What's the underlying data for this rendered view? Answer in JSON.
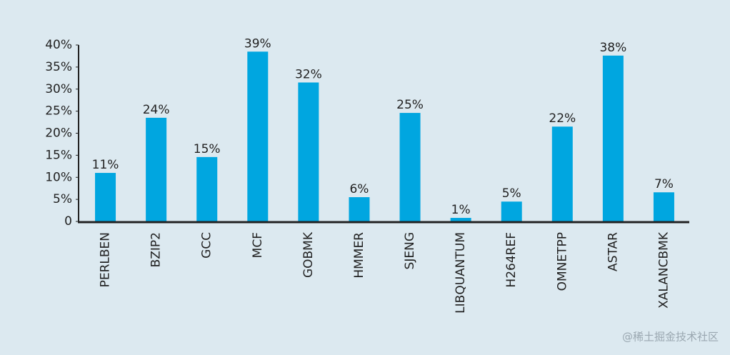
{
  "chart_data": {
    "type": "bar",
    "categories": [
      "PERLBEN",
      "BZIP2",
      "GCC",
      "MCF",
      "GOBMK",
      "HMMER",
      "SJENG",
      "LIBQUANTUM",
      "H264REF",
      "OMNETPP",
      "ASTAR",
      "XALANCBMK"
    ],
    "values": [
      11,
      23.5,
      14.6,
      38.5,
      31.5,
      5.5,
      24.6,
      0.8,
      4.5,
      21.5,
      37.6,
      6.6
    ],
    "value_labels": [
      "11%",
      "24%",
      "15%",
      "39%",
      "32%",
      "6%",
      "25%",
      "1%",
      "5%",
      "22%",
      "38%",
      "7%"
    ],
    "color": "#00a6e0",
    "ylim": [
      0,
      40
    ],
    "yticks": [
      0,
      {
        "value": 5,
        "label": "5%"
      },
      {
        "value": 10,
        "label": "10%"
      },
      {
        "value": 15,
        "label": "15%"
      },
      {
        "value": 20,
        "label": "20%"
      },
      {
        "value": 25,
        "label": "25%"
      },
      {
        "value": 30,
        "label": "30%"
      },
      {
        "value": 35,
        "label": "35%"
      },
      {
        "value": 40,
        "label": "40%"
      }
    ],
    "grid": false
  },
  "watermark": "@稀土掘金技术社区"
}
